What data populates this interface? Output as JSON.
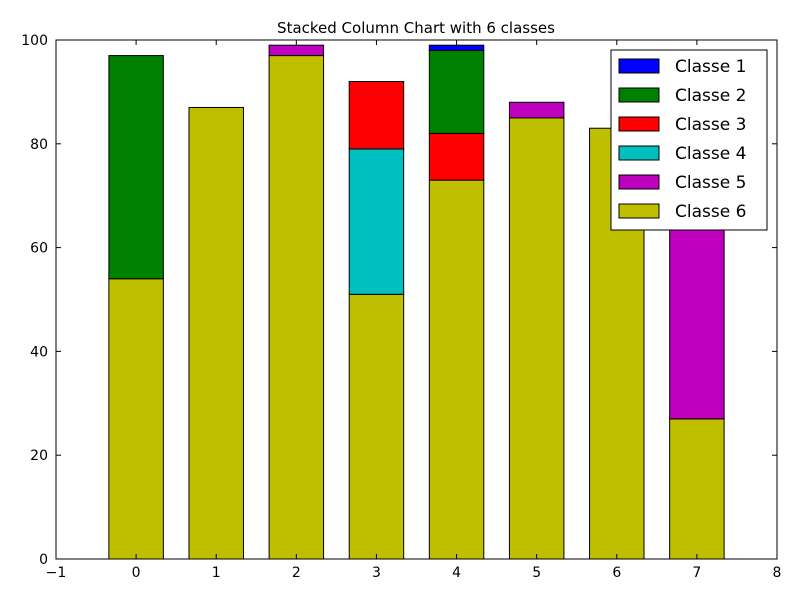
{
  "chart_data": {
    "type": "bar",
    "stacked": true,
    "title": "Stacked Column Chart with 6 classes",
    "xlabel": "",
    "ylabel": "",
    "categories": [
      0,
      1,
      2,
      3,
      4,
      5,
      6,
      7
    ],
    "xlim": [
      -1,
      8
    ],
    "ylim": [
      0,
      100
    ],
    "xticks": [
      -1,
      0,
      1,
      2,
      3,
      4,
      5,
      6,
      7,
      8
    ],
    "yticks": [
      0,
      20,
      40,
      60,
      80,
      100
    ],
    "xtick_labels": [
      "−1",
      "0",
      "1",
      "2",
      "3",
      "4",
      "5",
      "6",
      "7",
      "8"
    ],
    "ytick_labels": [
      "0",
      "20",
      "40",
      "60",
      "80",
      "100"
    ],
    "grid": false,
    "legend_position": "top-right",
    "stack_order_bottom_to_top": [
      "Classe 6",
      "Classe 5",
      "Classe 4",
      "Classe 3",
      "Classe 2",
      "Classe 1"
    ],
    "series": [
      {
        "name": "Classe 1",
        "color": "#0000ff",
        "values": [
          0,
          0,
          0,
          0,
          1,
          0,
          0,
          0
        ]
      },
      {
        "name": "Classe 2",
        "color": "#008000",
        "values": [
          43,
          0,
          0,
          0,
          16,
          0,
          0,
          0
        ]
      },
      {
        "name": "Classe 3",
        "color": "#ff0000",
        "values": [
          0,
          0,
          0,
          13,
          9,
          0,
          0,
          0
        ]
      },
      {
        "name": "Classe 4",
        "color": "#00bfbf",
        "values": [
          0,
          0,
          0,
          28,
          0,
          0,
          0,
          0
        ]
      },
      {
        "name": "Classe 5",
        "color": "#bf00bf",
        "values": [
          0,
          0,
          2,
          0,
          0,
          3,
          0,
          40
        ]
      },
      {
        "name": "Classe 6",
        "color": "#bfbf00",
        "values": [
          54,
          87,
          97,
          51,
          73,
          85,
          83,
          27
        ]
      }
    ]
  }
}
